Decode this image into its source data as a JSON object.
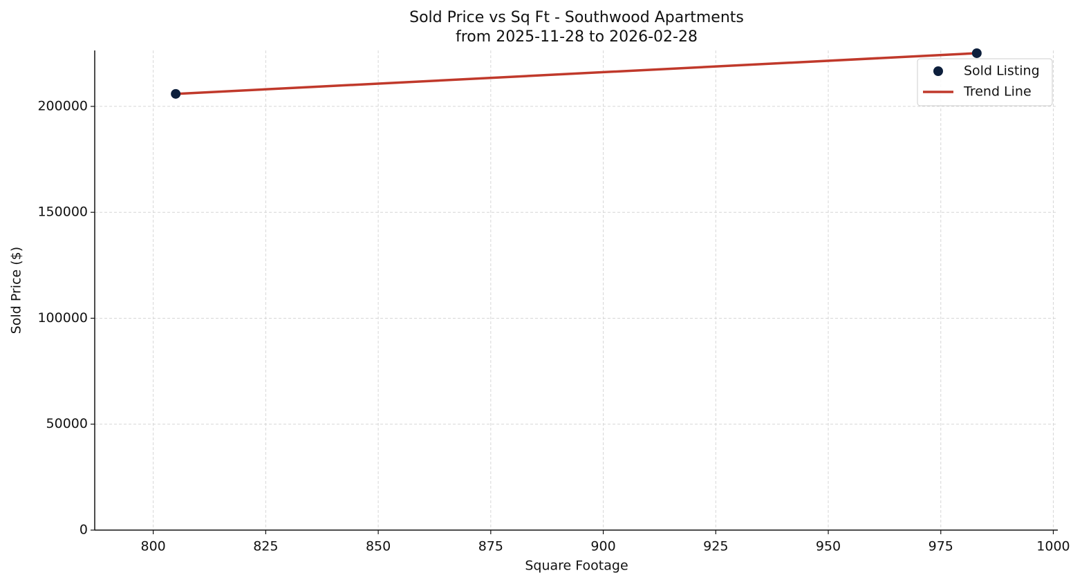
{
  "chart_data": {
    "type": "scatter",
    "title": "Sold Price vs Sq Ft - Southwood Apartments",
    "subtitle": "from 2025-11-28 to 2026-02-28",
    "x_label": "Square Footage",
    "y_label": "Sold Price ($)",
    "xlim": [
      787,
      1001
    ],
    "ylim": [
      0,
      226400
    ],
    "xticks": [
      800,
      825,
      850,
      875,
      900,
      925,
      950,
      975,
      1000
    ],
    "yticks": [
      0,
      50000,
      100000,
      150000,
      200000
    ],
    "grid": true,
    "legend": "upper right",
    "series": [
      {
        "name": "Sold Listing",
        "style": "points",
        "color": "#0d1f3c",
        "x": [
          805,
          983
        ],
        "values": [
          205900,
          225100
        ]
      },
      {
        "name": "Trend Line",
        "style": "line",
        "color": "#c0392b",
        "x": [
          805,
          983
        ],
        "values": [
          205900,
          225100
        ]
      }
    ]
  }
}
